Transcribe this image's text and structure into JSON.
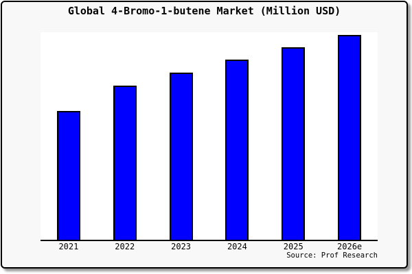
{
  "chart_data": {
    "type": "bar",
    "title": "Global 4-Bromo-1-butene Market (Million USD)",
    "categories": [
      "2021",
      "2022",
      "2023",
      "2024",
      "2025",
      "2026e"
    ],
    "values": [
      62.9,
      75.3,
      81.6,
      88.0,
      94.0,
      100.0
    ],
    "values_note": "No numeric y-axis or gridlines are shown in the chart; values are relative bar heights normalized to 2026e = 100.",
    "xlabel": "",
    "ylabel": "",
    "ylim": [
      0,
      101.3
    ],
    "legend": false,
    "gridlines": false,
    "bar_color": "#0000FF",
    "bar_border_color": "#000000"
  },
  "source": {
    "text": "Source: Prof Research"
  },
  "colors": {
    "frame_background": "#F8F8F8",
    "plot_background": "#FFFFFF",
    "frame_border": "#000000",
    "axis": "#000000",
    "shadow": "#999999",
    "text": "#000000"
  }
}
